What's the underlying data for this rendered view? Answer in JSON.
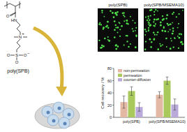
{
  "chart_data": {
    "type": "bar",
    "y_label": "Cell recovery / %",
    "categories": [
      "poly(SPB)",
      "poly(SPB/MSEMA10)"
    ],
    "series": [
      {
        "name": "non-permeation",
        "color": "#e3b9a6",
        "values": [
          25,
          37
        ],
        "errors": [
          10,
          5
        ]
      },
      {
        "name": "permeation",
        "color": "#a9c95c",
        "values": [
          43,
          60
        ],
        "errors": [
          7,
          6
        ]
      },
      {
        "name": "counter-diffusion",
        "color": "#b9aad9",
        "values": [
          17,
          21
        ],
        "errors": [
          7,
          9
        ]
      }
    ],
    "ylim": [
      0,
      80
    ],
    "yticks": [
      0,
      20,
      40,
      60,
      80
    ],
    "legend": "upper left"
  },
  "structure": {
    "name": "poly(SPB)",
    "atoms": [
      "O",
      "HN",
      "N",
      "+",
      "S",
      "O",
      "O",
      "O",
      "−"
    ]
  },
  "images": [
    {
      "label": "poly(SPB)"
    },
    {
      "label": "poly(SPB/MSEMA10)"
    }
  ]
}
